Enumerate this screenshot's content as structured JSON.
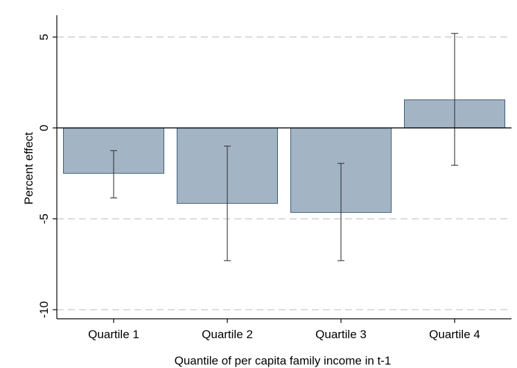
{
  "chart_data": {
    "type": "bar",
    "title": "",
    "xlabel": "Quantile of per capita family income in t-1",
    "ylabel": "Percent effect",
    "categories": [
      "Quartile 1",
      "Quartile 2",
      "Quartile 3",
      "Quartile 4"
    ],
    "values": [
      -2.5,
      -4.15,
      -4.65,
      1.55
    ],
    "error_low": [
      -3.85,
      -7.3,
      -7.3,
      -2.05
    ],
    "error_high": [
      -1.25,
      -1.0,
      -1.95,
      5.2
    ],
    "ylim": [
      -10.5,
      6.2
    ],
    "yticks": [
      -10,
      -5,
      0,
      5
    ],
    "ytick_labels": [
      "-10",
      "-5",
      "0",
      "5"
    ],
    "grid": "dashed horizontal at y ticks",
    "colors": {
      "bar_fill": "#a3b4c5",
      "bar_stroke": "#3c5a78",
      "error_bar": "#333333",
      "grid": "#d0d0d0",
      "zero_line": "#000000"
    }
  }
}
